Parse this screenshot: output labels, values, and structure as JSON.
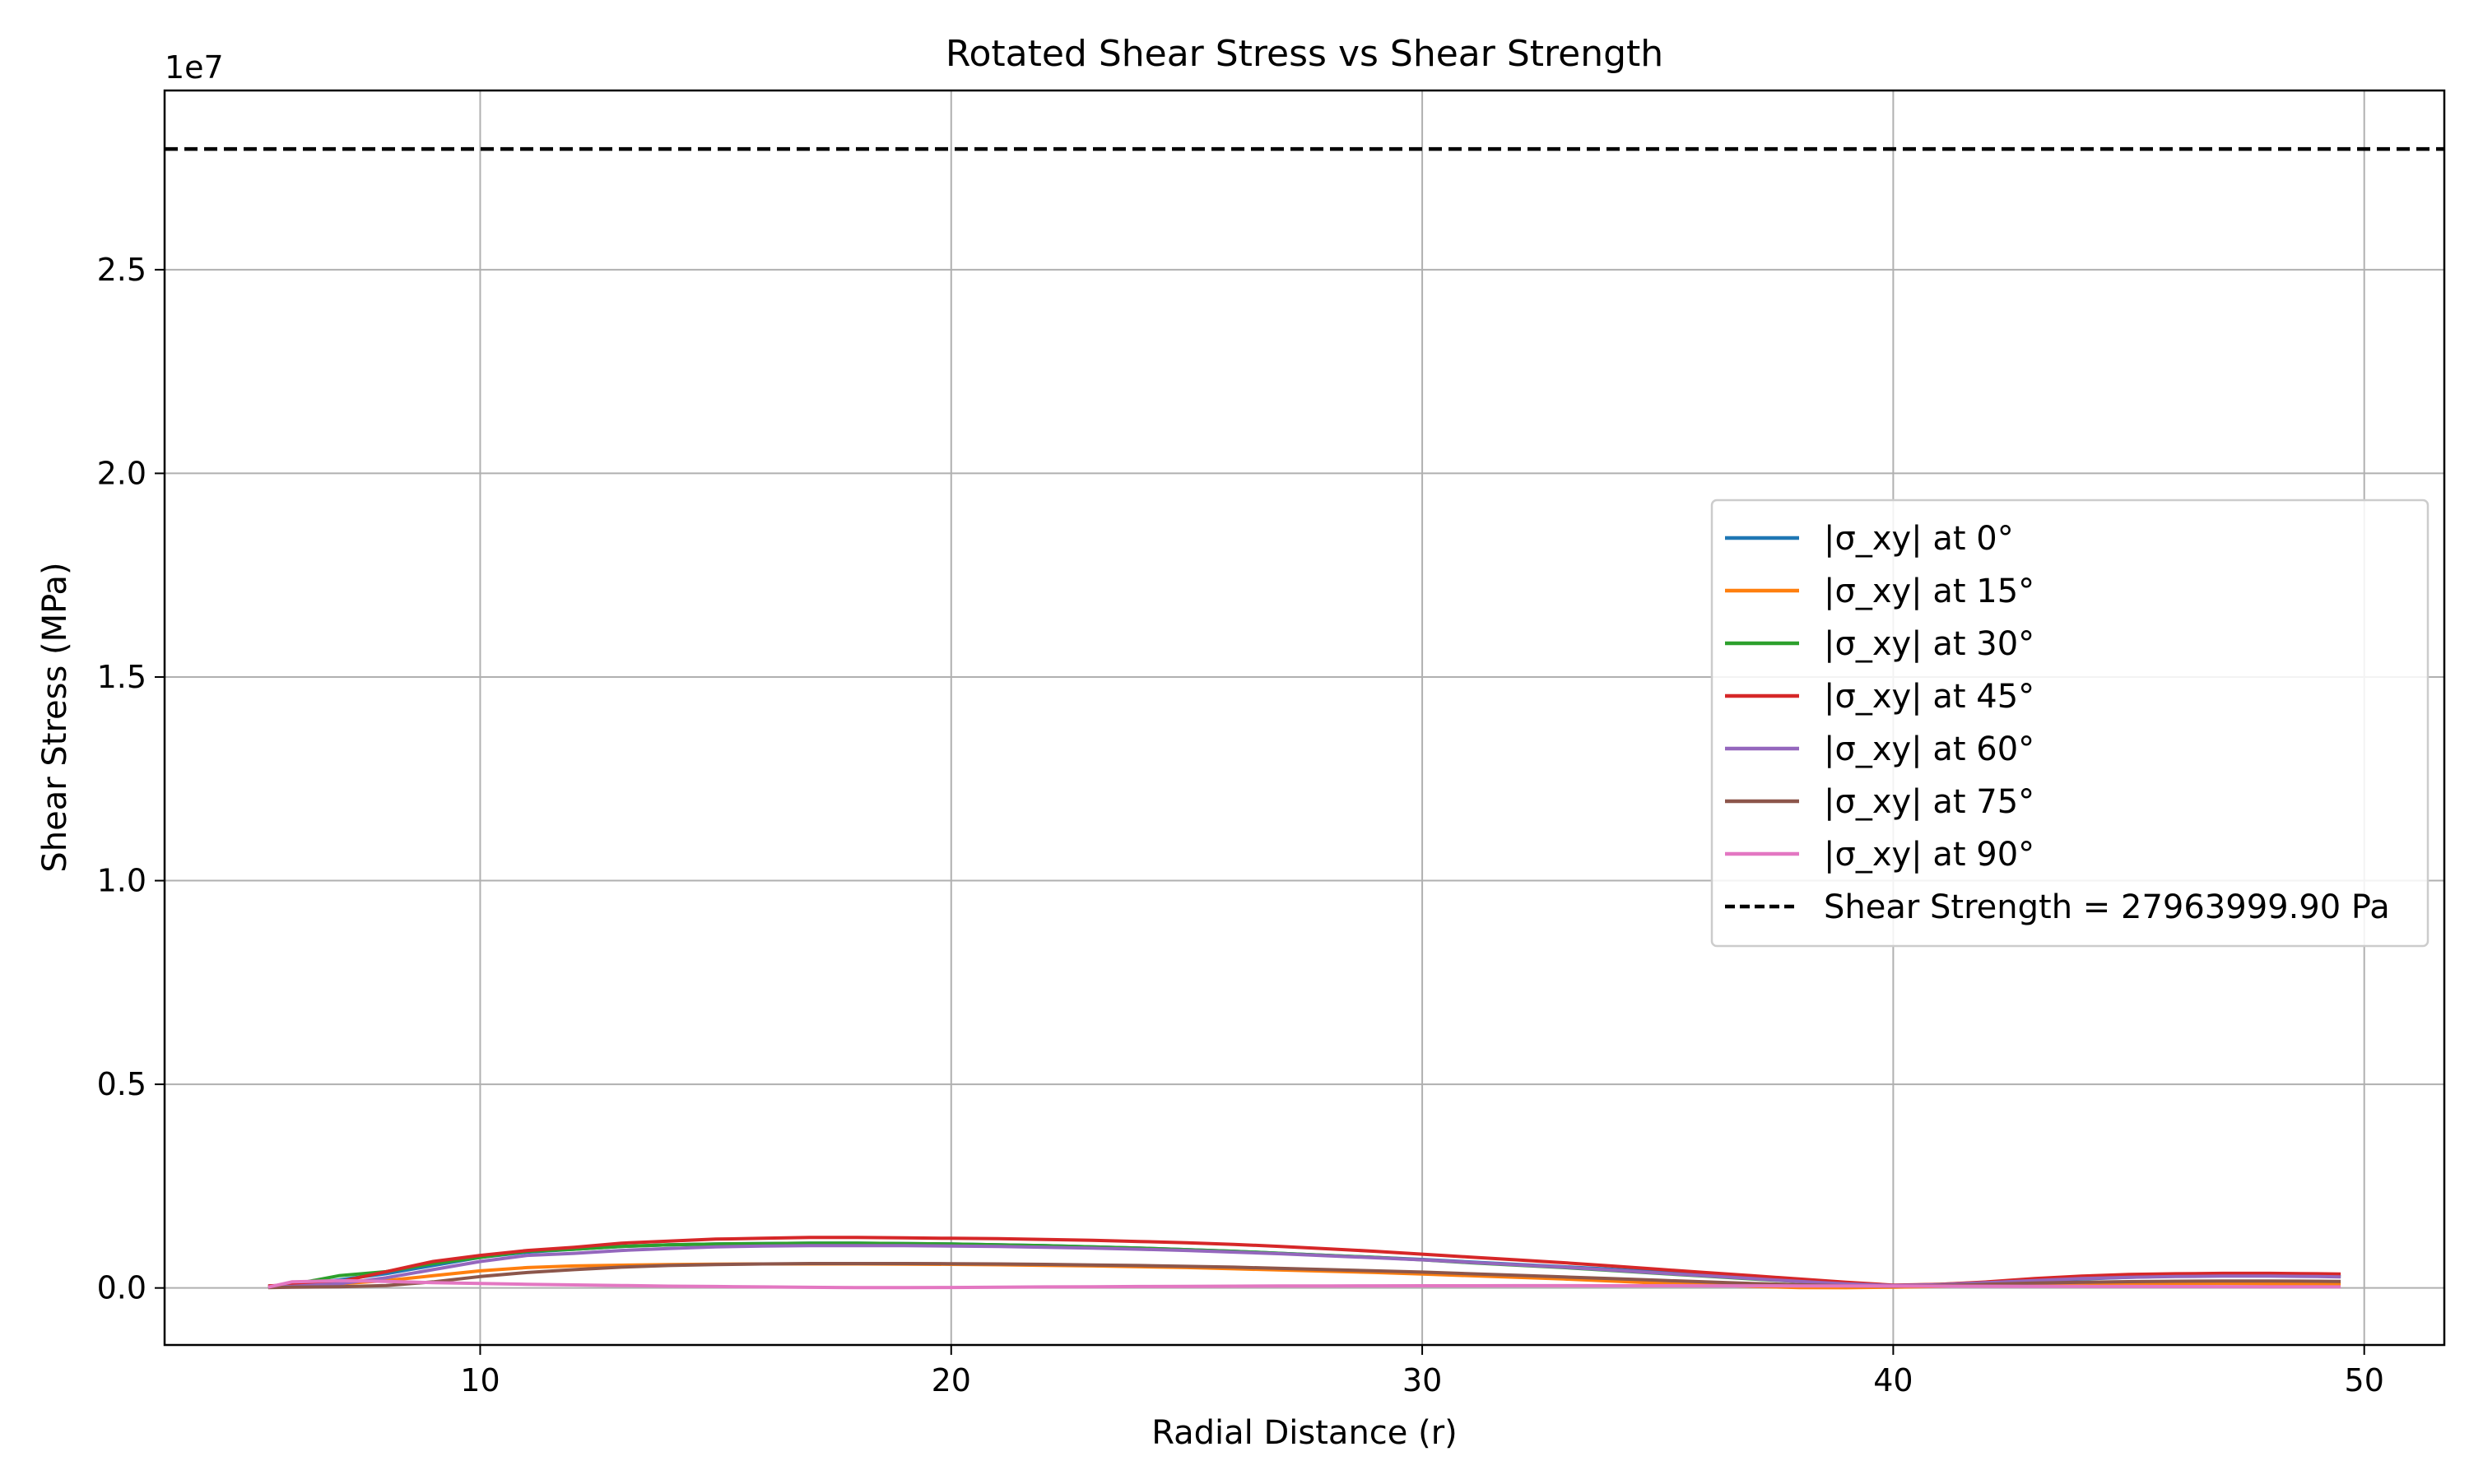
{
  "chart_data": {
    "type": "line",
    "title": "Rotated Shear Stress vs Shear Strength",
    "xlabel": "Radial Distance (r)",
    "ylabel": "Shear Stress (MPa)",
    "y_offset_label": "1e7",
    "xlim": [
      3.3,
      51.7
    ],
    "ylim": [
      -1400000,
      29400000
    ],
    "x_ticks": [
      10,
      20,
      30,
      40,
      50
    ],
    "x_tick_labels": [
      "10",
      "20",
      "30",
      "40",
      "50"
    ],
    "y_ticks": [
      0,
      5000000,
      10000000,
      15000000,
      20000000,
      25000000
    ],
    "y_tick_labels": [
      "0.0",
      "0.5",
      "1.0",
      "1.5",
      "2.0",
      "2.5"
    ],
    "grid": true,
    "legend_position": "center-right",
    "x": [
      5.5,
      6,
      7,
      8,
      9,
      10,
      11,
      12,
      13,
      14,
      15,
      16,
      17,
      18,
      19,
      20,
      21,
      22,
      23,
      24,
      25,
      26,
      27,
      28,
      29,
      30,
      31,
      32,
      33,
      34,
      35,
      36,
      37,
      38,
      39,
      40,
      41,
      42,
      43,
      44,
      45,
      46,
      47,
      48,
      49,
      49.5
    ],
    "series": [
      {
        "name": "|σ_xy| at 0°",
        "color": "#1f77b4",
        "values": [
          50000,
          60000,
          200000,
          350000,
          550000,
          750000,
          880000,
          950000,
          1020000,
          1060000,
          1080000,
          1090000,
          1100000,
          1100000,
          1090000,
          1080000,
          1060000,
          1040000,
          1010000,
          980000,
          940000,
          900000,
          850000,
          800000,
          750000,
          700000,
          640000,
          580000,
          520000,
          460000,
          390000,
          320000,
          250000,
          180000,
          110000,
          60000,
          80000,
          120000,
          170000,
          220000,
          260000,
          290000,
          300000,
          300000,
          290000,
          280000
        ]
      },
      {
        "name": "|σ_xy| at 15°",
        "color": "#ff7f0e",
        "values": [
          30000,
          50000,
          100000,
          180000,
          300000,
          420000,
          500000,
          540000,
          560000,
          575000,
          585000,
          590000,
          590000,
          590000,
          585000,
          580000,
          570000,
          555000,
          540000,
          520000,
          500000,
          470000,
          440000,
          410000,
          380000,
          340000,
          300000,
          260000,
          220000,
          170000,
          120000,
          80000,
          40000,
          10000,
          5000,
          20000,
          40000,
          60000,
          80000,
          95000,
          105000,
          110000,
          110000,
          105000,
          100000,
          95000
        ]
      },
      {
        "name": "|σ_xy| at 30°",
        "color": "#2ca02c",
        "values": [
          40000,
          80000,
          300000,
          400000,
          600000,
          750000,
          900000,
          950000,
          1020000,
          1060000,
          1080000,
          1090000,
          1100000,
          1100000,
          1090000,
          1080000,
          1060000,
          1040000,
          1010000,
          980000,
          940000,
          900000,
          850000,
          800000,
          750000,
          690000,
          620000,
          560000,
          500000,
          430000,
          360000,
          290000,
          220000,
          160000,
          100000,
          60000,
          90000,
          140000,
          190000,
          240000,
          270000,
          290000,
          300000,
          300000,
          290000,
          280000
        ]
      },
      {
        "name": "|σ_xy| at 45°",
        "color": "#d62728",
        "values": [
          50000,
          80000,
          150000,
          400000,
          650000,
          800000,
          920000,
          1000000,
          1100000,
          1150000,
          1200000,
          1220000,
          1240000,
          1240000,
          1230000,
          1220000,
          1210000,
          1190000,
          1170000,
          1140000,
          1110000,
          1070000,
          1020000,
          960000,
          900000,
          830000,
          760000,
          690000,
          620000,
          540000,
          460000,
          380000,
          300000,
          220000,
          140000,
          70000,
          90000,
          150000,
          230000,
          290000,
          330000,
          350000,
          360000,
          360000,
          350000,
          340000
        ]
      },
      {
        "name": "|σ_xy| at 60°",
        "color": "#9467bd",
        "values": [
          20000,
          40000,
          100000,
          250000,
          450000,
          650000,
          800000,
          850000,
          920000,
          970000,
          1010000,
          1030000,
          1040000,
          1040000,
          1040000,
          1030000,
          1020000,
          1000000,
          980000,
          950000,
          920000,
          880000,
          840000,
          790000,
          740000,
          690000,
          630000,
          570000,
          510000,
          440000,
          370000,
          300000,
          230000,
          160000,
          100000,
          60000,
          80000,
          130000,
          180000,
          230000,
          260000,
          280000,
          290000,
          290000,
          280000,
          270000
        ]
      },
      {
        "name": "|σ_xy| at 75°",
        "color": "#8c564b",
        "values": [
          10000,
          20000,
          30000,
          60000,
          150000,
          280000,
          380000,
          450000,
          510000,
          550000,
          575000,
          590000,
          600000,
          600000,
          600000,
          595000,
          590000,
          580000,
          565000,
          550000,
          530000,
          510000,
          480000,
          450000,
          420000,
          390000,
          350000,
          310000,
          270000,
          230000,
          190000,
          150000,
          110000,
          80000,
          50000,
          40000,
          60000,
          90000,
          120000,
          140000,
          155000,
          165000,
          170000,
          170000,
          165000,
          160000
        ]
      },
      {
        "name": "|σ_xy| at 90°",
        "color": "#e377c2",
        "values": [
          20000,
          150000,
          180000,
          160000,
          130000,
          110000,
          90000,
          75000,
          60000,
          45000,
          35000,
          25000,
          15000,
          10000,
          8000,
          12000,
          18000,
          25000,
          30000,
          35000,
          40000,
          45000,
          48000,
          50000,
          52000,
          54000,
          55000,
          56000,
          56000,
          55000,
          54000,
          53000,
          52000,
          50000,
          48000,
          46000,
          44000,
          42000,
          40000,
          38000,
          36000,
          34000,
          32000,
          30000,
          28000,
          26000
        ]
      }
    ],
    "threshold": {
      "name": "Shear Strength = 27963999.90 Pa",
      "value": 27963999.9,
      "color": "#000000",
      "style": "dashed"
    }
  }
}
